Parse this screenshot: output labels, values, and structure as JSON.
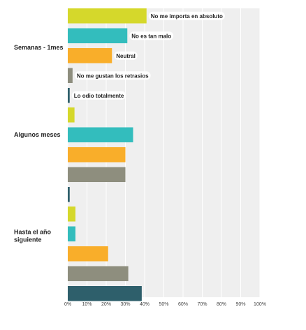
{
  "chart_data": {
    "type": "bar",
    "orientation": "horizontal",
    "title": "",
    "xlabel": "",
    "ylabel": "",
    "xlim": [
      0,
      100
    ],
    "x_ticks": [
      "0%",
      "10%",
      "20%",
      "30%",
      "40%",
      "50%",
      "60%",
      "70%",
      "80%",
      "90%",
      "100%"
    ],
    "grid": true,
    "legend": "inline-labels-first-group",
    "categories": [
      "Semanas - 1mes",
      "Algunos meses",
      "Hasta el año siguiente"
    ],
    "series": [
      {
        "name": "No me importa en absoluto",
        "color": "#d5d82b",
        "values": [
          41,
          3.5,
          4
        ]
      },
      {
        "name": "No es tan malo",
        "color": "#33bdbd",
        "values": [
          31,
          34,
          4
        ]
      },
      {
        "name": "Neutral",
        "color": "#f9ae2a",
        "values": [
          23,
          30,
          21
        ]
      },
      {
        "name": "No me gustan los retrasios",
        "color": "#8e8e7e",
        "values": [
          2.5,
          30,
          31.5
        ]
      },
      {
        "name": "Lo odio totalmente",
        "color": "#2e5f6b",
        "values": [
          1,
          1,
          38.5
        ]
      }
    ]
  }
}
